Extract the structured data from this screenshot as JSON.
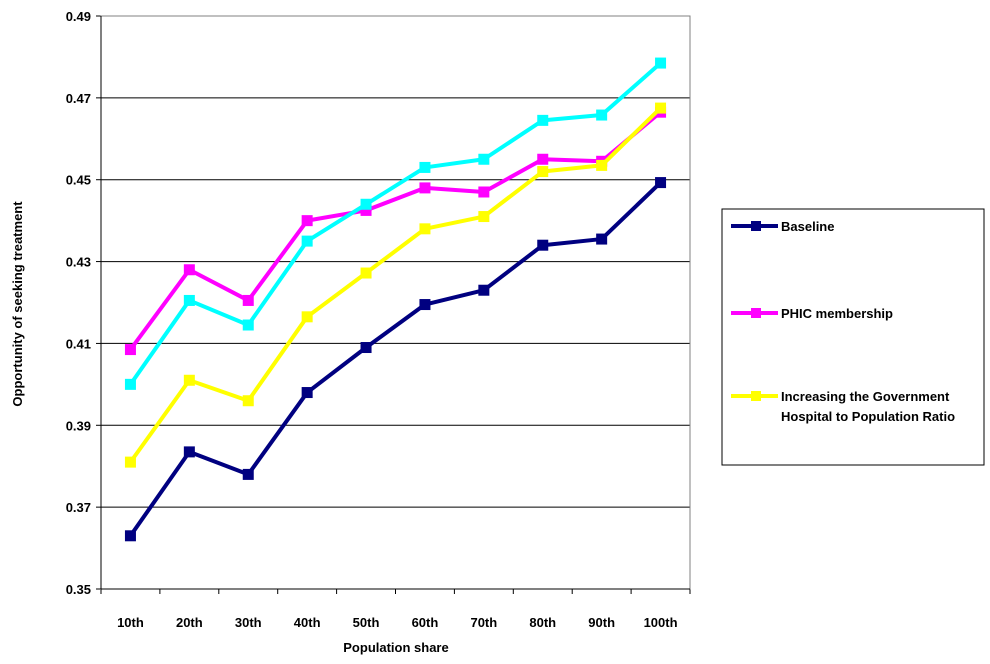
{
  "chart_data": {
    "type": "line",
    "xlabel": "Population share",
    "ylabel": "Opportunity of seeking treatment",
    "ylim": [
      0.35,
      0.49
    ],
    "yticks": [
      "0.35",
      "0.37",
      "0.39",
      "0.41",
      "0.43",
      "0.45",
      "0.47",
      "0.49"
    ],
    "grid": "horizontal",
    "legend_position": "right",
    "categories": [
      "10th",
      "20th",
      "30th",
      "40th",
      "50th",
      "60th",
      "70th",
      "80th",
      "90th",
      "100th"
    ],
    "series": [
      {
        "name": "Baseline",
        "color": "#000080",
        "values": [
          0.363,
          0.3835,
          0.378,
          0.398,
          0.409,
          0.4195,
          0.423,
          0.434,
          0.4355,
          0.4493
        ]
      },
      {
        "name": "PHIC membership",
        "color": "#ff00ff",
        "values": [
          0.4085,
          0.428,
          0.4205,
          0.44,
          0.4425,
          0.448,
          0.447,
          0.455,
          0.4545,
          0.4665
        ]
      },
      {
        "name": "",
        "color": "#00ffff",
        "values": [
          0.4,
          0.4205,
          0.4145,
          0.435,
          0.444,
          0.453,
          0.455,
          0.4645,
          0.4658,
          0.4785
        ]
      },
      {
        "name": "Increasing the Government Hospital to Population Ratio",
        "color": "#ffff00",
        "values": [
          0.381,
          0.401,
          0.396,
          0.4165,
          0.4272,
          0.438,
          0.441,
          0.452,
          0.4535,
          0.4675
        ]
      }
    ],
    "legend": [
      {
        "lines": [
          "Baseline"
        ],
        "color": "#000080"
      },
      {
        "lines": [
          "PHIC membership"
        ],
        "color": "#ff00ff"
      },
      {
        "lines": [
          "Increasing the Government",
          "Hospital to Population Ratio"
        ],
        "color": "#ffff00"
      }
    ]
  }
}
